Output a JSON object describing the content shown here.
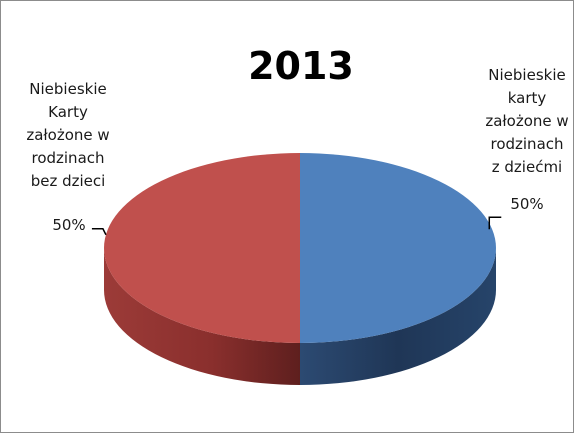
{
  "chart_data": {
    "type": "pie",
    "title": "2013",
    "style": "3d",
    "slices": [
      {
        "label_lines": [
          "Niebieskie",
          "karty",
          "założone w",
          "rodzinach",
          "z dziećmi"
        ],
        "percent_label": "50%",
        "value": 50,
        "color": "#4f81bd"
      },
      {
        "label_lines": [
          "Niebieskie",
          "Karty",
          "założone w",
          "rodzinach",
          "bez dzieci"
        ],
        "percent_label": "50%",
        "value": 50,
        "color": "#c0504d"
      }
    ]
  }
}
